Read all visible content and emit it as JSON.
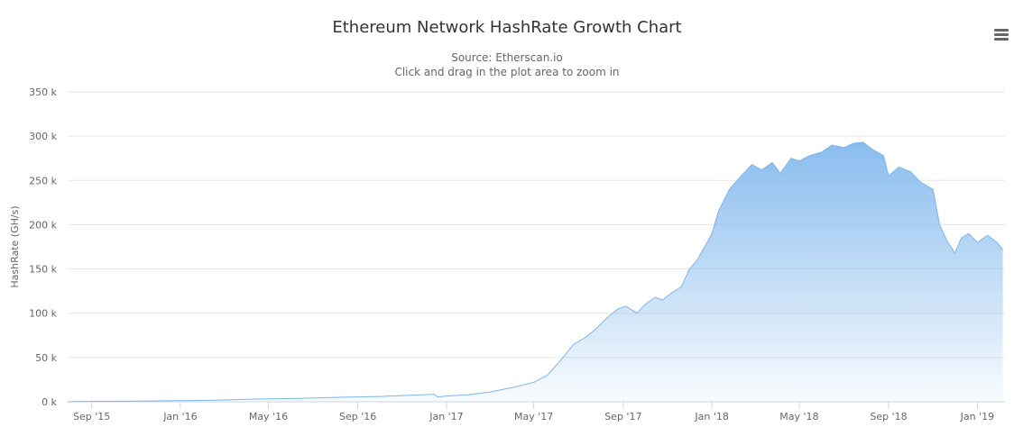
{
  "chart_data": {
    "type": "area",
    "title": "Ethereum Network HashRate Growth Chart",
    "subtitle": "Source: Etherscan.io",
    "subtitle2": "Click and drag in the plot area to zoom in",
    "xlabel": "",
    "ylabel": "HashRate (GH/s)",
    "ylim": [
      0,
      350000
    ],
    "y_ticks": [
      0,
      50000,
      100000,
      150000,
      200000,
      250000,
      300000,
      350000
    ],
    "y_tick_labels": [
      "0 k",
      "50 k",
      "100 k",
      "150 k",
      "200 k",
      "250 k",
      "300 k",
      "350 k"
    ],
    "x_tick_labels": [
      "Sep '15",
      "Jan '16",
      "May '16",
      "Sep '16",
      "Jan '17",
      "May '17",
      "Sep '17",
      "Jan '18",
      "May '18",
      "Sep '18",
      "Jan '19"
    ],
    "x_tick_dates": [
      "2015-09-01",
      "2016-01-01",
      "2016-05-01",
      "2016-09-01",
      "2017-01-01",
      "2017-05-01",
      "2017-09-01",
      "2018-01-01",
      "2018-05-01",
      "2018-09-01",
      "2019-01-01"
    ],
    "xlim": [
      "2015-07-30",
      "2019-02-08"
    ],
    "grid": true,
    "legend": false,
    "series_color": "#7cb5ec",
    "x": [
      "2015-07-30",
      "2015-09-01",
      "2015-11-01",
      "2016-01-01",
      "2016-02-01",
      "2016-03-01",
      "2016-04-01",
      "2016-05-01",
      "2016-06-01",
      "2016-07-01",
      "2016-08-01",
      "2016-09-01",
      "2016-10-01",
      "2016-11-01",
      "2016-12-01",
      "2016-12-15",
      "2016-12-20",
      "2017-01-01",
      "2017-02-01",
      "2017-03-01",
      "2017-04-01",
      "2017-05-01",
      "2017-05-20",
      "2017-06-10",
      "2017-06-25",
      "2017-07-10",
      "2017-07-25",
      "2017-08-10",
      "2017-08-25",
      "2017-09-05",
      "2017-09-20",
      "2017-10-01",
      "2017-10-15",
      "2017-10-25",
      "2017-11-05",
      "2017-11-20",
      "2017-12-01",
      "2017-12-10",
      "2017-12-20",
      "2018-01-01",
      "2018-01-10",
      "2018-01-25",
      "2018-02-10",
      "2018-02-25",
      "2018-03-10",
      "2018-03-25",
      "2018-04-05",
      "2018-04-20",
      "2018-05-01",
      "2018-05-15",
      "2018-06-01",
      "2018-06-15",
      "2018-07-01",
      "2018-07-15",
      "2018-07-28",
      "2018-08-10",
      "2018-08-25",
      "2018-09-01",
      "2018-09-15",
      "2018-10-01",
      "2018-10-15",
      "2018-11-01",
      "2018-11-10",
      "2018-11-20",
      "2018-12-01",
      "2018-12-10",
      "2018-12-20",
      "2019-01-01",
      "2019-01-15",
      "2019-01-28",
      "2019-02-05"
    ],
    "values": [
      0,
      500,
      800,
      1200,
      1500,
      2000,
      2700,
      3300,
      3600,
      4200,
      5000,
      5500,
      6000,
      7000,
      8000,
      8500,
      5500,
      6500,
      8000,
      11000,
      16000,
      22000,
      30000,
      50000,
      65000,
      72000,
      82000,
      95000,
      105000,
      108000,
      100000,
      110000,
      118000,
      115000,
      122000,
      130000,
      150000,
      158000,
      172000,
      190000,
      215000,
      240000,
      255000,
      268000,
      262000,
      270000,
      258000,
      275000,
      272000,
      278000,
      282000,
      290000,
      287000,
      292000,
      293000,
      285000,
      278000,
      255000,
      265000,
      260000,
      248000,
      240000,
      200000,
      182000,
      168000,
      185000,
      190000,
      180000,
      188000,
      180000,
      172000
    ]
  }
}
